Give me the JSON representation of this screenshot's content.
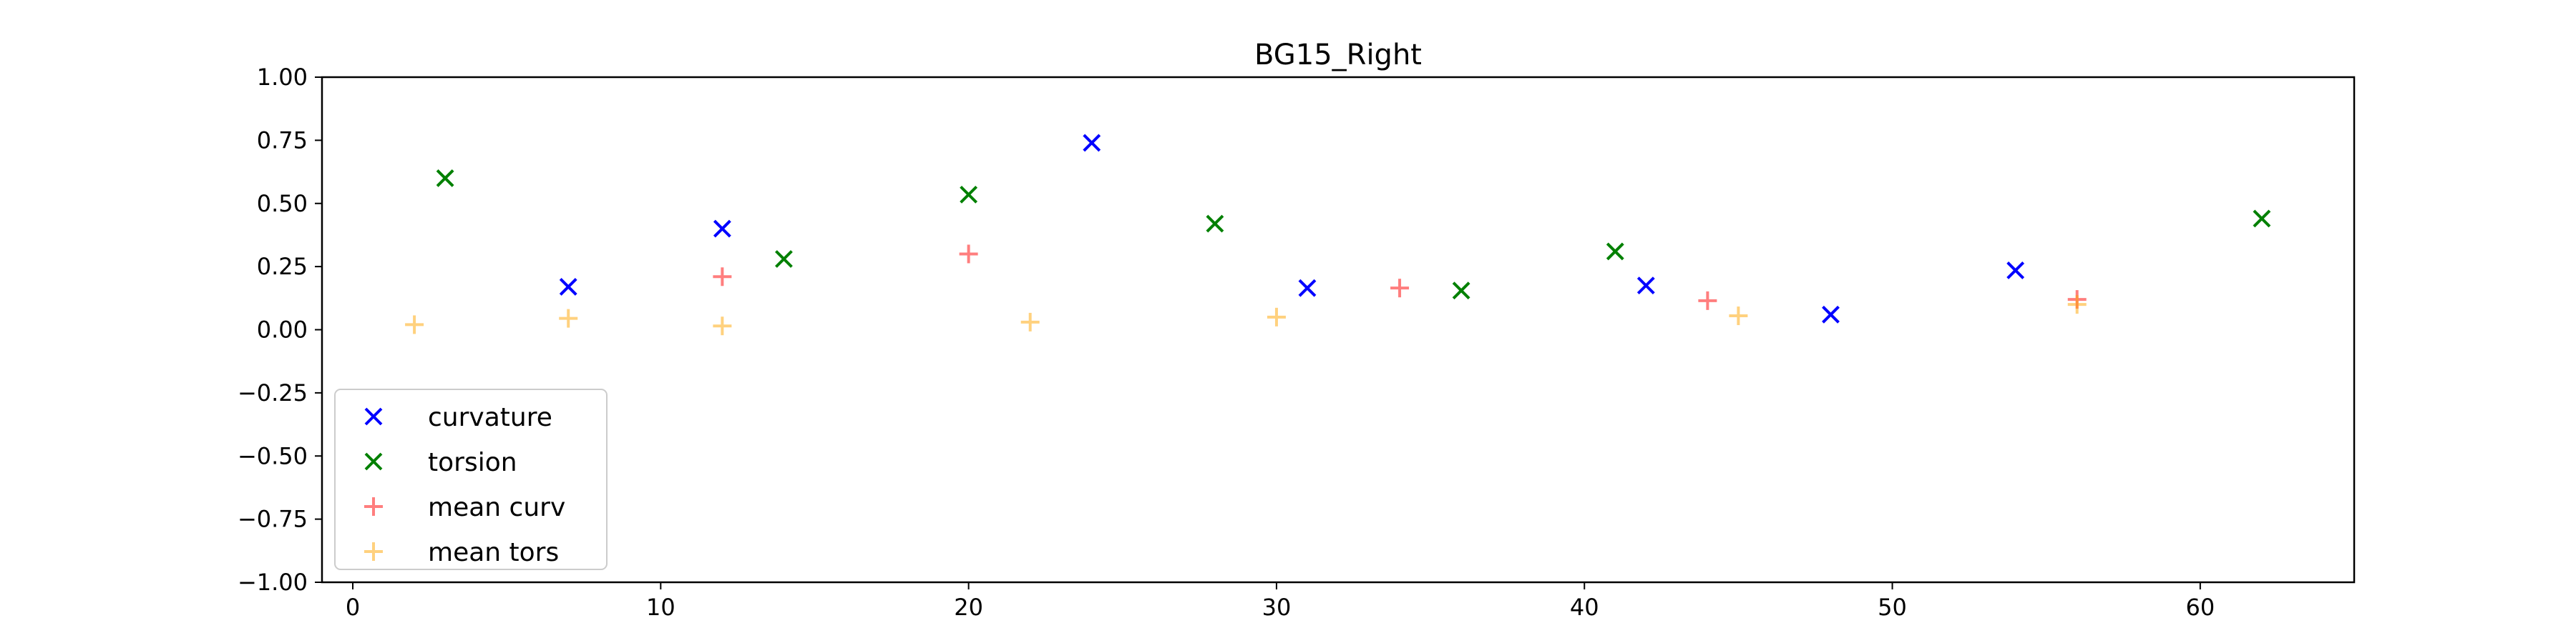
{
  "chart_data": {
    "type": "scatter",
    "title": "BG15_Right",
    "xlabel": "",
    "ylabel": "",
    "xlim": [
      -1,
      65
    ],
    "ylim": [
      -1.0,
      1.0
    ],
    "x_ticks": [
      0,
      10,
      20,
      30,
      40,
      50,
      60
    ],
    "y_ticks": [
      1.0,
      0.75,
      0.5,
      0.25,
      0.0,
      -0.25,
      -0.5,
      -0.75,
      -1.0
    ],
    "x_tick_labels": [
      "0",
      "10",
      "20",
      "30",
      "40",
      "50",
      "60"
    ],
    "y_tick_labels": [
      "1.00",
      "0.75",
      "0.50",
      "0.25",
      "0.00",
      "−0.25",
      "−0.50",
      "−0.75",
      "−1.00"
    ],
    "grid": false,
    "legend_position": "lower-left",
    "series": [
      {
        "name": "curvature",
        "marker": "x",
        "color": "#0000ff",
        "alpha": 1.0,
        "x": [
          7,
          12,
          24,
          31,
          42,
          48,
          54
        ],
        "y": [
          0.17,
          0.4,
          0.74,
          0.165,
          0.175,
          0.06,
          0.235
        ]
      },
      {
        "name": "torsion",
        "marker": "x",
        "color": "#008000",
        "alpha": 1.0,
        "x": [
          3,
          14,
          20,
          28,
          36,
          41,
          62
        ],
        "y": [
          0.6,
          0.28,
          0.535,
          0.42,
          0.155,
          0.31,
          0.44
        ]
      },
      {
        "name": "mean curv",
        "marker": "+",
        "color": "#ff0000",
        "alpha": 0.5,
        "x": [
          12,
          20,
          34,
          44,
          56
        ],
        "y": [
          0.21,
          0.3,
          0.165,
          0.115,
          0.12
        ]
      },
      {
        "name": "mean tors",
        "marker": "+",
        "color": "#ffa500",
        "alpha": 0.5,
        "x": [
          2,
          7,
          12,
          22,
          30,
          45,
          56
        ],
        "y": [
          0.02,
          0.045,
          0.015,
          0.03,
          0.05,
          0.055,
          0.1
        ]
      }
    ]
  }
}
